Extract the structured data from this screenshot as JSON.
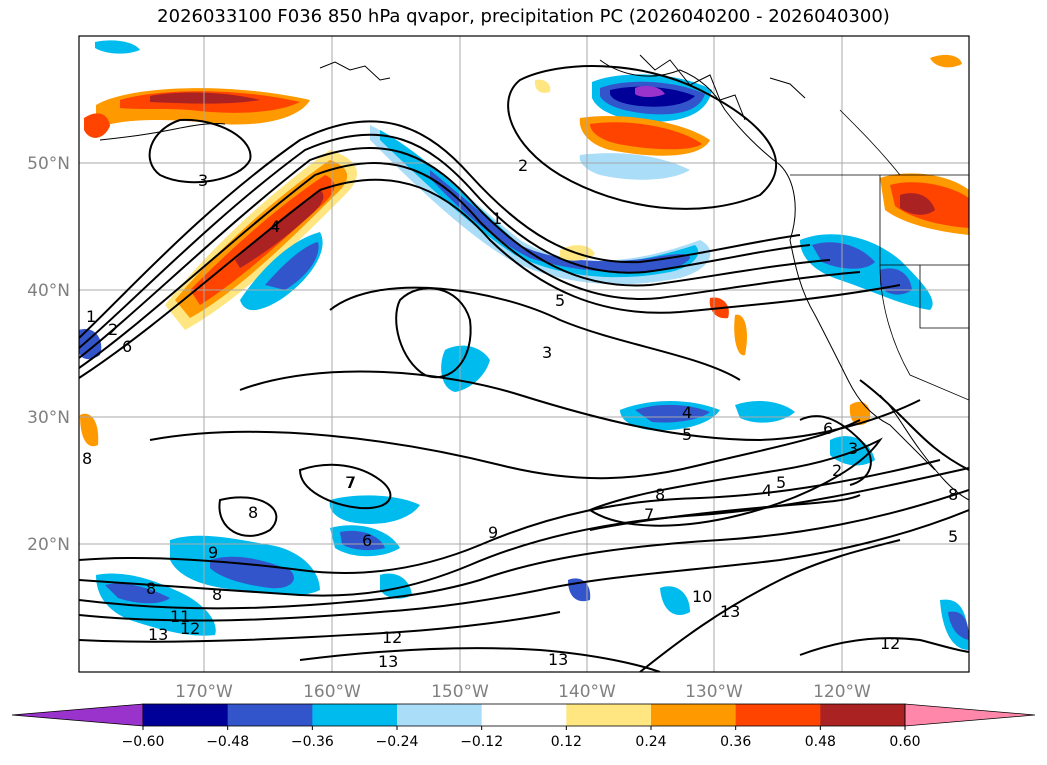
{
  "title": "2026033100 F036 850 hPa qvapor, precipitation PC (2026040200 - 2026040300)",
  "map": {
    "lat_labels": [
      "50°N",
      "40°N",
      "30°N",
      "20°N"
    ],
    "lon_labels": [
      "170°W",
      "160°W",
      "150°W",
      "140°W",
      "130°W",
      "120°W"
    ],
    "label_color": "#808080",
    "contour_labels": [
      "3",
      "2",
      "1",
      "4",
      "5",
      "2",
      "1",
      "3",
      "6",
      "8",
      "7",
      "8",
      "9",
      "8",
      "9",
      "6",
      "7",
      "8",
      "11",
      "13",
      "12",
      "12",
      "13",
      "13",
      "12",
      "13",
      "10",
      "8",
      "7",
      "4",
      "5",
      "4",
      "5",
      "6",
      "3",
      "2",
      "5",
      "8"
    ]
  },
  "colorbar": {
    "ticks": [
      "−0.60",
      "−0.48",
      "−0.36",
      "−0.24",
      "−0.12",
      "0.12",
      "0.24",
      "0.36",
      "0.48",
      "0.60"
    ],
    "colors": [
      "#9933cc",
      "#000099",
      "#3355cc",
      "#00bbee",
      "#aaddf8",
      "#ffffff",
      "#ffe680",
      "#ff9900",
      "#ff4400",
      "#aa2222",
      "#ff88aa"
    ]
  }
}
